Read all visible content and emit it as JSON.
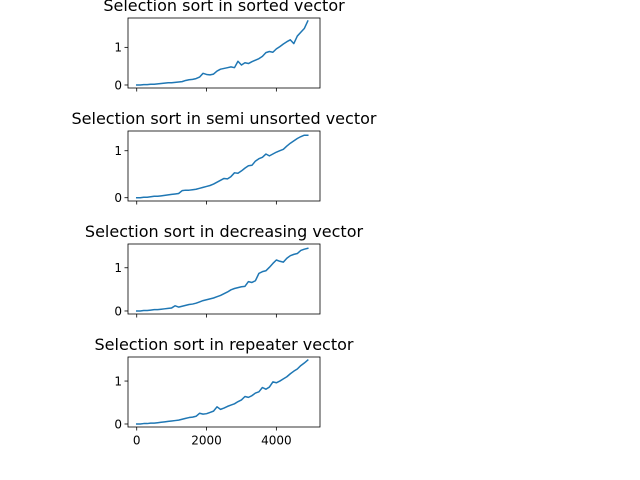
{
  "chart_data": [
    {
      "type": "line",
      "title": "Selection sort in sorted vector",
      "xlabel": "",
      "ylabel": "",
      "xlim": [
        -250,
        5250
      ],
      "ylim": [
        -0.08,
        1.78
      ],
      "xticks": [
        0,
        2000,
        4000
      ],
      "yticks": [
        0,
        1
      ],
      "show_xtick_labels": false,
      "x": [
        0,
        100,
        200,
        300,
        400,
        500,
        600,
        700,
        800,
        900,
        1000,
        1100,
        1200,
        1300,
        1400,
        1500,
        1600,
        1700,
        1800,
        1900,
        2000,
        2100,
        2200,
        2300,
        2400,
        2500,
        2600,
        2700,
        2800,
        2900,
        3000,
        3100,
        3200,
        3300,
        3400,
        3500,
        3600,
        3700,
        3800,
        3900,
        4000,
        4100,
        4200,
        4300,
        4400,
        4500,
        4600,
        4700,
        4800,
        4900
      ],
      "values": [
        0.0,
        0.0,
        0.01,
        0.01,
        0.02,
        0.02,
        0.03,
        0.04,
        0.05,
        0.06,
        0.06,
        0.07,
        0.08,
        0.09,
        0.12,
        0.14,
        0.15,
        0.17,
        0.21,
        0.31,
        0.28,
        0.27,
        0.29,
        0.37,
        0.42,
        0.44,
        0.46,
        0.48,
        0.46,
        0.63,
        0.53,
        0.59,
        0.57,
        0.62,
        0.66,
        0.7,
        0.76,
        0.86,
        0.89,
        0.87,
        0.96,
        1.02,
        1.09,
        1.15,
        1.2,
        1.1,
        1.3,
        1.4,
        1.5,
        1.7
      ]
    },
    {
      "type": "line",
      "title": "Selection sort in semi unsorted vector",
      "xlabel": "",
      "ylabel": "",
      "xlim": [
        -250,
        5250
      ],
      "ylim": [
        -0.07,
        1.42
      ],
      "xticks": [
        0,
        2000,
        4000
      ],
      "yticks": [
        0,
        1
      ],
      "show_xtick_labels": false,
      "x": [
        0,
        100,
        200,
        300,
        400,
        500,
        600,
        700,
        800,
        900,
        1000,
        1100,
        1200,
        1300,
        1400,
        1500,
        1600,
        1700,
        1800,
        1900,
        2000,
        2100,
        2200,
        2300,
        2400,
        2500,
        2600,
        2700,
        2800,
        2900,
        3000,
        3100,
        3200,
        3300,
        3400,
        3500,
        3600,
        3700,
        3800,
        3900,
        4000,
        4100,
        4200,
        4300,
        4400,
        4500,
        4600,
        4700,
        4800,
        4900
      ],
      "values": [
        0.0,
        0.0,
        0.01,
        0.01,
        0.02,
        0.03,
        0.03,
        0.04,
        0.05,
        0.06,
        0.07,
        0.08,
        0.09,
        0.15,
        0.16,
        0.16,
        0.17,
        0.18,
        0.2,
        0.22,
        0.24,
        0.26,
        0.29,
        0.33,
        0.37,
        0.41,
        0.4,
        0.45,
        0.53,
        0.52,
        0.57,
        0.63,
        0.68,
        0.69,
        0.78,
        0.83,
        0.86,
        0.93,
        0.89,
        0.93,
        0.97,
        1.0,
        1.03,
        1.1,
        1.16,
        1.21,
        1.26,
        1.3,
        1.33,
        1.33
      ]
    },
    {
      "type": "line",
      "title": "Selection sort in decreasing vector",
      "xlabel": "",
      "ylabel": "",
      "xlim": [
        -250,
        5250
      ],
      "ylim": [
        -0.07,
        1.55
      ],
      "xticks": [
        0,
        2000,
        4000
      ],
      "yticks": [
        0,
        1
      ],
      "show_xtick_labels": false,
      "x": [
        0,
        100,
        200,
        300,
        400,
        500,
        600,
        700,
        800,
        900,
        1000,
        1100,
        1200,
        1300,
        1400,
        1500,
        1600,
        1700,
        1800,
        1900,
        2000,
        2100,
        2200,
        2300,
        2400,
        2500,
        2600,
        2700,
        2800,
        2900,
        3000,
        3100,
        3200,
        3300,
        3400,
        3500,
        3600,
        3700,
        3800,
        3900,
        4000,
        4100,
        4200,
        4300,
        4400,
        4500,
        4600,
        4700,
        4800,
        4900
      ],
      "values": [
        0.0,
        0.0,
        0.01,
        0.01,
        0.02,
        0.03,
        0.03,
        0.04,
        0.05,
        0.06,
        0.07,
        0.12,
        0.09,
        0.11,
        0.13,
        0.15,
        0.16,
        0.18,
        0.21,
        0.24,
        0.26,
        0.28,
        0.3,
        0.33,
        0.36,
        0.4,
        0.44,
        0.49,
        0.52,
        0.54,
        0.56,
        0.57,
        0.68,
        0.66,
        0.7,
        0.87,
        0.91,
        0.93,
        1.01,
        1.1,
        1.18,
        1.15,
        1.13,
        1.22,
        1.28,
        1.31,
        1.33,
        1.4,
        1.43,
        1.45
      ]
    },
    {
      "type": "line",
      "title": "Selection sort in repeater vector",
      "xlabel": "",
      "ylabel": "",
      "xlim": [
        -250,
        5250
      ],
      "ylim": [
        -0.07,
        1.56
      ],
      "xticks": [
        0,
        2000,
        4000
      ],
      "yticks": [
        0,
        1
      ],
      "show_xtick_labels": true,
      "xtick_labels": [
        "0",
        "2000",
        "4000"
      ],
      "x": [
        0,
        100,
        200,
        300,
        400,
        500,
        600,
        700,
        800,
        900,
        1000,
        1100,
        1200,
        1300,
        1400,
        1500,
        1600,
        1700,
        1800,
        1900,
        2000,
        2100,
        2200,
        2300,
        2400,
        2500,
        2600,
        2700,
        2800,
        2900,
        3000,
        3100,
        3200,
        3300,
        3400,
        3500,
        3600,
        3700,
        3800,
        3900,
        4000,
        4100,
        4200,
        4300,
        4400,
        4500,
        4600,
        4700,
        4800,
        4900
      ],
      "values": [
        0.0,
        0.0,
        0.01,
        0.01,
        0.02,
        0.02,
        0.03,
        0.04,
        0.05,
        0.06,
        0.07,
        0.08,
        0.09,
        0.11,
        0.13,
        0.15,
        0.16,
        0.18,
        0.25,
        0.23,
        0.24,
        0.27,
        0.3,
        0.4,
        0.34,
        0.37,
        0.41,
        0.44,
        0.47,
        0.52,
        0.56,
        0.64,
        0.62,
        0.66,
        0.72,
        0.75,
        0.85,
        0.81,
        0.86,
        0.98,
        0.96,
        1.0,
        1.05,
        1.1,
        1.17,
        1.23,
        1.28,
        1.36,
        1.42,
        1.49
      ]
    }
  ]
}
